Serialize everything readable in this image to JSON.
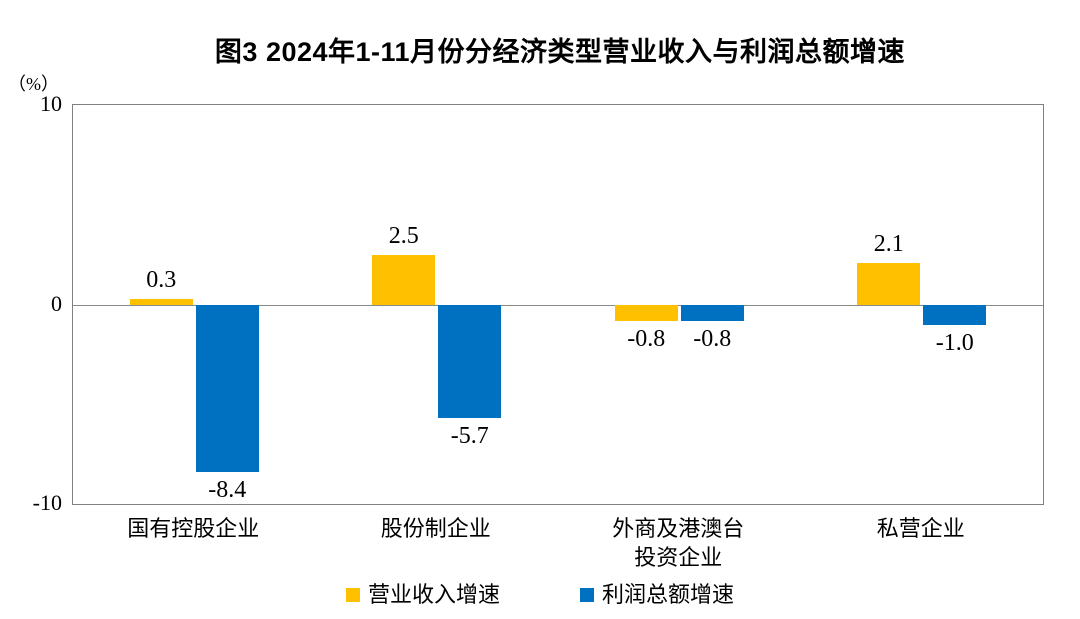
{
  "title": "图3 2024年1-11月份分经济类型营业收入与利润总额增速",
  "y_axis": {
    "unit_label": "（%）",
    "ticks": [
      "10",
      "0",
      "-10"
    ]
  },
  "chart_data": {
    "type": "bar",
    "title": "图3 2024年1-11月份分经济类型营业收入与利润总额增速",
    "categories": [
      "国有控股企业",
      "股份制企业",
      "外商及港澳台\n投资企业",
      "私营企业"
    ],
    "series": [
      {
        "name": "营业收入增速",
        "color": "#FFC000",
        "values": [
          0.3,
          2.5,
          -0.8,
          2.1
        ],
        "labels": [
          "0.3",
          "2.5",
          "-0.8",
          "2.1"
        ]
      },
      {
        "name": "利润总额增速",
        "color": "#0070C0",
        "values": [
          -8.4,
          -5.7,
          -0.8,
          -1.0
        ],
        "labels": [
          "-8.4",
          "-5.7",
          "-0.8",
          "-1.0"
        ]
      }
    ],
    "xlabel": "",
    "ylabel": "（%）",
    "ylim": [
      -10,
      10
    ],
    "yticks": [
      10,
      0,
      -10
    ],
    "grid": "zero-line-only",
    "legend_position": "bottom"
  },
  "legend": {
    "items": [
      {
        "label": "营业收入增速",
        "color": "#FFC000"
      },
      {
        "label": "利润总额增速",
        "color": "#0070C0"
      }
    ]
  },
  "colors": {
    "axis": "#808080",
    "text": "#000000",
    "background": "#FFFFFF"
  }
}
